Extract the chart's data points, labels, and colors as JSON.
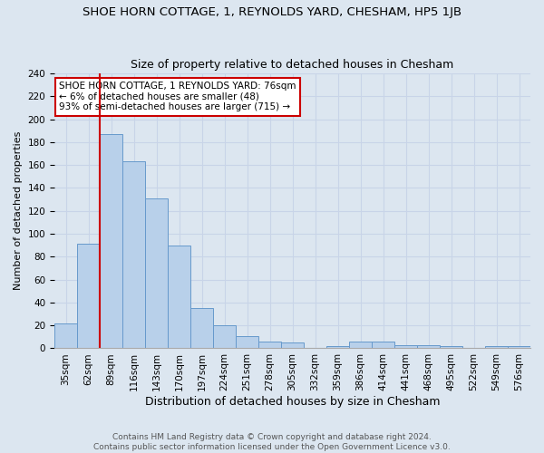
{
  "title": "SHOE HORN COTTAGE, 1, REYNOLDS YARD, CHESHAM, HP5 1JB",
  "subtitle": "Size of property relative to detached houses in Chesham",
  "xlabel": "Distribution of detached houses by size in Chesham",
  "ylabel": "Number of detached properties",
  "bar_labels": [
    "35sqm",
    "62sqm",
    "89sqm",
    "116sqm",
    "143sqm",
    "170sqm",
    "197sqm",
    "224sqm",
    "251sqm",
    "278sqm",
    "305sqm",
    "332sqm",
    "359sqm",
    "386sqm",
    "414sqm",
    "441sqm",
    "468sqm",
    "495sqm",
    "522sqm",
    "549sqm",
    "576sqm"
  ],
  "bar_values": [
    22,
    91,
    187,
    163,
    131,
    90,
    35,
    20,
    11,
    6,
    5,
    0,
    2,
    6,
    6,
    3,
    3,
    2,
    0,
    2,
    2
  ],
  "bar_color": "#b8d0ea",
  "bar_edge_color": "#6699cc",
  "vline_x": 76,
  "vline_color": "#cc0000",
  "annotation_text": "SHOE HORN COTTAGE, 1 REYNOLDS YARD: 76sqm\n← 6% of detached houses are smaller (48)\n93% of semi-detached houses are larger (715) →",
  "annotation_box_color": "#ffffff",
  "annotation_box_edge": "#cc0000",
  "ylim": [
    0,
    240
  ],
  "yticks": [
    0,
    20,
    40,
    60,
    80,
    100,
    120,
    140,
    160,
    180,
    200,
    220,
    240
  ],
  "grid_color": "#c8d4e8",
  "background_color": "#dce6f0",
  "footer_line1": "Contains HM Land Registry data © Crown copyright and database right 2024.",
  "footer_line2": "Contains public sector information licensed under the Open Government Licence v3.0.",
  "title_fontsize": 9.5,
  "subtitle_fontsize": 9,
  "xlabel_fontsize": 9,
  "ylabel_fontsize": 8,
  "tick_fontsize": 7.5,
  "footer_fontsize": 6.5
}
